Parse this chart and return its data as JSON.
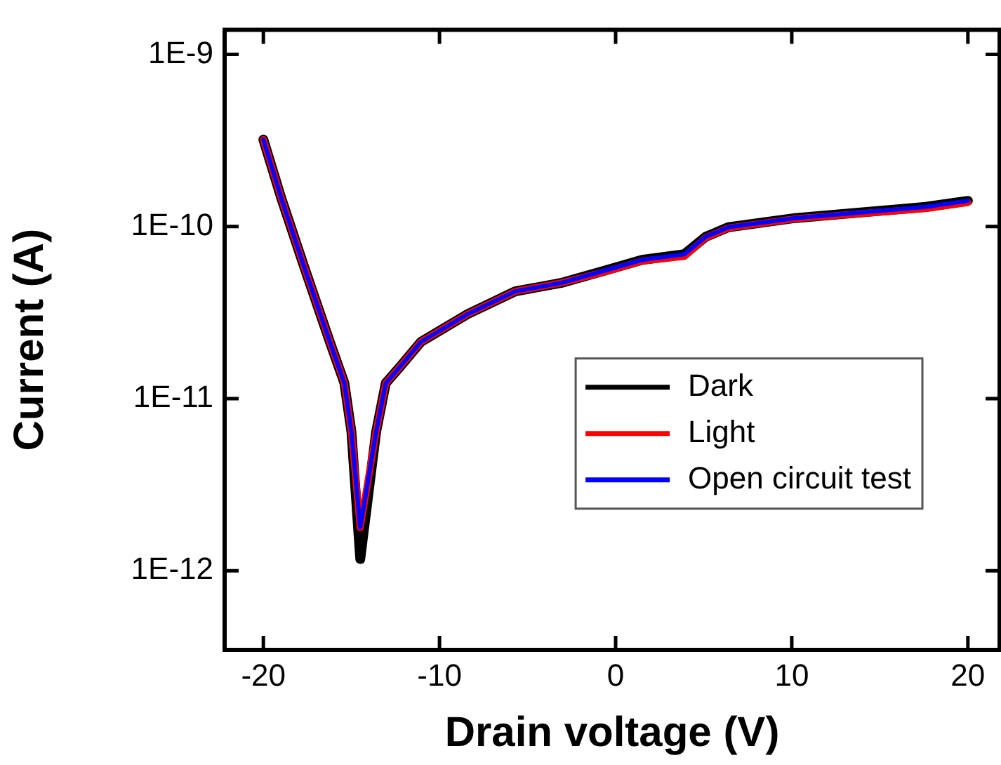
{
  "chart_data": {
    "type": "line",
    "xlabel": "Drain voltage (V)",
    "ylabel": "Current (A)",
    "log": "y",
    "xlim": [
      -22.2,
      21.8
    ],
    "xticks": [
      -20,
      -10,
      0,
      10,
      20
    ],
    "ylim": [
      3.47e-13,
      1.39e-09
    ],
    "yticks": [
      {
        "value": 1e-09,
        "label": "1E-9"
      },
      {
        "value": 1e-10,
        "label": "1E-10"
      },
      {
        "value": 1e-11,
        "label": "1E-11"
      },
      {
        "value": 1e-12,
        "label": "1E-12"
      }
    ],
    "legend": "right",
    "grid": false,
    "marker": "none",
    "line_style": "solid",
    "x": [
      -20,
      -19,
      -17.7,
      -16.2,
      -15.4,
      -15,
      -14.5,
      -13.6,
      -13.05,
      -12.2,
      -11.05,
      -8.4,
      -5.7,
      -3.1,
      -0.47,
      1.5,
      3.9,
      5.1,
      6.4,
      10.2,
      17.6,
      20
    ],
    "series": [
      {
        "name": "Dark",
        "color": "#000000",
        "values": [
          3.2e-10,
          1.48e-10,
          5.9e-11,
          2.1e-11,
          1.23e-11,
          6.4e-12,
          1.17e-12,
          6.4e-12,
          1.23e-11,
          1.55e-11,
          2.14e-11,
          3.1e-11,
          4.2e-11,
          4.7e-11,
          5.6e-11,
          6.4e-11,
          6.9e-11,
          8.7e-11,
          9.9e-11,
          1.12e-10,
          1.3e-10,
          1.41e-10
        ]
      },
      {
        "name": "Light",
        "color": "#ff0000",
        "values": [
          3.2e-10,
          1.48e-10,
          5.9e-11,
          2.1e-11,
          1.23e-11,
          6.4e-12,
          1.78e-12,
          6.4e-12,
          1.23e-11,
          1.55e-11,
          2.14e-11,
          3.1e-11,
          4.2e-11,
          4.7e-11,
          5.5e-11,
          6.3e-11,
          6.7e-11,
          8.6e-11,
          9.8e-11,
          1.11e-10,
          1.27e-10,
          1.38e-10
        ]
      },
      {
        "name": "Open circuit test",
        "color": "#0000ff",
        "values": [
          3.2e-10,
          1.48e-10,
          5.9e-11,
          2.1e-11,
          1.23e-11,
          6.4e-12,
          1.78e-12,
          6.4e-12,
          1.23e-11,
          1.55e-11,
          2.14e-11,
          3.1e-11,
          4.2e-11,
          4.7e-11,
          5.6e-11,
          6.4e-11,
          6.9e-11,
          8.7e-11,
          9.9e-11,
          1.12e-10,
          1.3e-10,
          1.41e-10
        ]
      }
    ]
  }
}
